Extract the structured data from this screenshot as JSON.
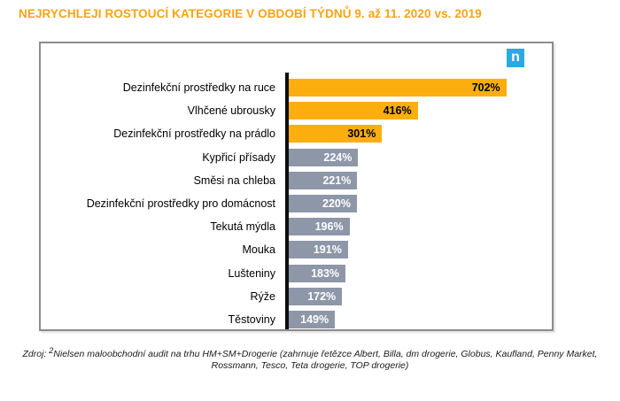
{
  "title": "NEJRYCHLEJI ROSTOUCÍ KATEGORIE V OBDOBÍ TÝDNŮ 9. až 11. 2020 vs. 2019",
  "logo": {
    "icon": "nielsen-n-logo",
    "letter": "n",
    "background_color": "#29ABE2",
    "letter_color": "#FFFFFF"
  },
  "chart_data": {
    "type": "bar",
    "orientation": "horizontal",
    "categories": [
      "Dezinfekční prostředky na ruce",
      "Vlhčené ubrousky",
      "Dezinfekční prostředky na prádlo",
      "Kypřicí přísady",
      "Směsi na chleba",
      "Dezinfekční prostředky pro domácnost",
      "Tekutá mýdla",
      "Mouka",
      "Lušteniny",
      "Rýže",
      "Těstoviny"
    ],
    "values": [
      702,
      416,
      301,
      224,
      221,
      220,
      196,
      191,
      183,
      172,
      149
    ],
    "value_labels": [
      "702%",
      "416%",
      "301%",
      "224%",
      "221%",
      "220%",
      "196%",
      "191%",
      "183%",
      "172%",
      "149%"
    ],
    "unit": "%",
    "xlim": [
      0,
      850
    ],
    "grid": false,
    "legend": false,
    "highlight_count": 3,
    "highlight_color": "#FCAE0E",
    "base_color": "#8D97A8",
    "highlight_value_text_color": "#000000",
    "base_value_text_color": "#FFFFFF",
    "axis_color": "#0D0D0D",
    "title": "NEJRYCHLEJI ROSTOUCÍ KATEGORIE V OBDOBÍ TÝDNŮ 9. až 11. 2020 vs. 2019"
  },
  "source": {
    "label": "Zdroj:",
    "footnote_marker": "2",
    "line1": "Nielsen maloobchodní audit na trhu HM+SM+Drogerie (zahrnuje řetězce Albert, Billa, dm drogerie, Globus, Kaufland, Penny Market,",
    "line2": "Rossmann, Tesco, Teta drogerie, TOP drogerie)"
  }
}
